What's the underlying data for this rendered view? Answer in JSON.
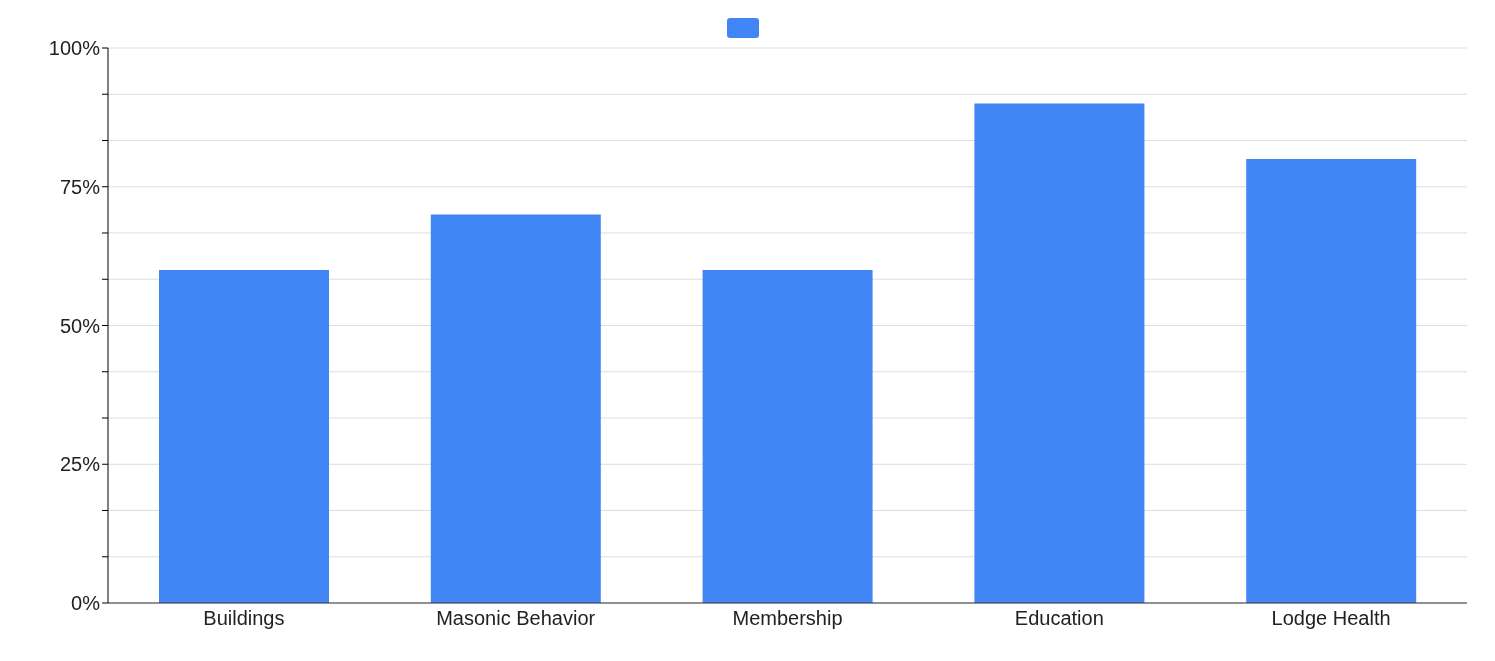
{
  "chart_data": {
    "type": "bar",
    "categories": [
      "Buildings",
      "Masonic Behavior",
      "Membership",
      "Education",
      "Lodge Health"
    ],
    "series": [
      {
        "color": "#4285f4",
        "values": [
          60,
          70,
          60,
          90,
          80
        ]
      }
    ],
    "ylim": [
      0,
      100
    ],
    "yticks": [
      {
        "value": 0,
        "label": "0%"
      },
      {
        "value": 8.33,
        "label": null
      },
      {
        "value": 16.67,
        "label": null
      },
      {
        "value": 25,
        "label": "25%"
      },
      {
        "value": 33.33,
        "label": null
      },
      {
        "value": 41.67,
        "label": null
      },
      {
        "value": 50,
        "label": "50%"
      },
      {
        "value": 58.33,
        "label": null
      },
      {
        "value": 66.67,
        "label": null
      },
      {
        "value": 75,
        "label": "75%"
      },
      {
        "value": 83.33,
        "label": null
      },
      {
        "value": 91.67,
        "label": null
      },
      {
        "value": 100,
        "label": "100%"
      }
    ],
    "grid": "y"
  }
}
